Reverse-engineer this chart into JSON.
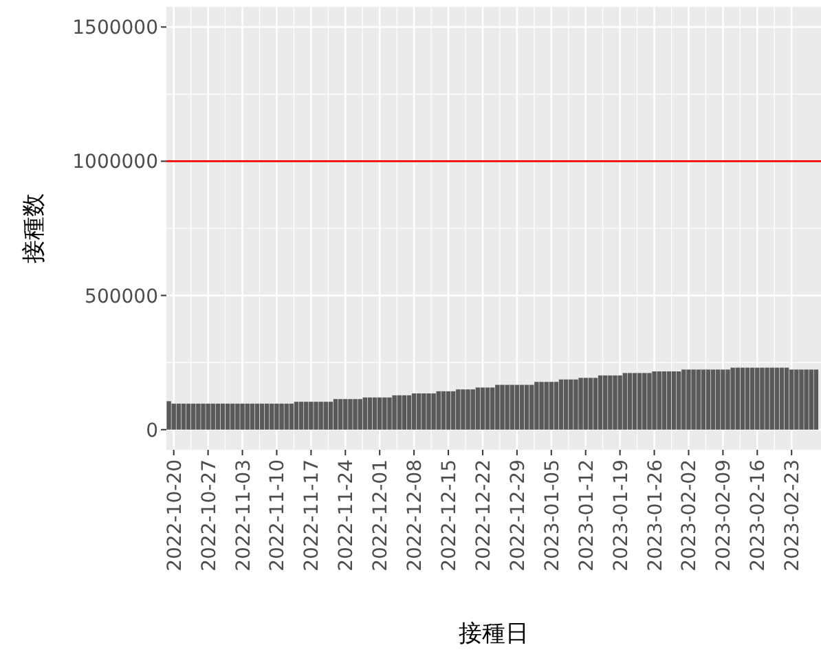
{
  "chart_data": {
    "type": "bar",
    "xlabel": "接種日",
    "ylabel": "接種数",
    "color": "#595959",
    "x": [
      "2022-10-19",
      "2022-10-20",
      "2022-10-21",
      "2022-10-22",
      "2022-10-23",
      "2022-10-24",
      "2022-10-25",
      "2022-10-26",
      "2022-10-27",
      "2022-10-28",
      "2022-10-29",
      "2022-10-30",
      "2022-10-31",
      "2022-11-01",
      "2022-11-02",
      "2022-11-03",
      "2022-11-04",
      "2022-11-05",
      "2022-11-06",
      "2022-11-07",
      "2022-11-08",
      "2022-11-09",
      "2022-11-10",
      "2022-11-11",
      "2022-11-12",
      "2022-11-13",
      "2022-11-14",
      "2022-11-15",
      "2022-11-16",
      "2022-11-17",
      "2022-11-18",
      "2022-11-19",
      "2022-11-20",
      "2022-11-21",
      "2022-11-22",
      "2022-11-23",
      "2022-11-24",
      "2022-11-25",
      "2022-11-26",
      "2022-11-27",
      "2022-11-28",
      "2022-11-29",
      "2022-11-30",
      "2022-12-01",
      "2022-12-02",
      "2022-12-03",
      "2022-12-04",
      "2022-12-05",
      "2022-12-06",
      "2022-12-07",
      "2022-12-08",
      "2022-12-09",
      "2022-12-10",
      "2022-12-11",
      "2022-12-12",
      "2022-12-13",
      "2022-12-14",
      "2022-12-15",
      "2022-12-16",
      "2022-12-17",
      "2022-12-18",
      "2022-12-19",
      "2022-12-20",
      "2022-12-21",
      "2022-12-22",
      "2022-12-23",
      "2022-12-24",
      "2022-12-25",
      "2022-12-26",
      "2022-12-27",
      "2022-12-28",
      "2022-12-29",
      "2022-12-30",
      "2022-12-31",
      "2023-01-01",
      "2023-01-02",
      "2023-01-03",
      "2023-01-04",
      "2023-01-05",
      "2023-01-06",
      "2023-01-07",
      "2023-01-08",
      "2023-01-09",
      "2023-01-10",
      "2023-01-11",
      "2023-01-12",
      "2023-01-13",
      "2023-01-14",
      "2023-01-15",
      "2023-01-16",
      "2023-01-17",
      "2023-01-18",
      "2023-01-19",
      "2023-01-20",
      "2023-01-21",
      "2023-01-22",
      "2023-01-23",
      "2023-01-24",
      "2023-01-25",
      "2023-01-26",
      "2023-01-27",
      "2023-01-28",
      "2023-01-29",
      "2023-01-30",
      "2023-01-31",
      "2023-02-01",
      "2023-02-02",
      "2023-02-03",
      "2023-02-04",
      "2023-02-05",
      "2023-02-06",
      "2023-02-07",
      "2023-02-08",
      "2023-02-09",
      "2023-02-10",
      "2023-02-11",
      "2023-02-12",
      "2023-02-13",
      "2023-02-14",
      "2023-02-15",
      "2023-02-16",
      "2023-02-17",
      "2023-02-18",
      "2023-02-19",
      "2023-02-20",
      "2023-02-21",
      "2023-02-22",
      "2023-02-23",
      "2023-02-24",
      "2023-02-25",
      "2023-02-26",
      "2023-02-27",
      "2023-02-28"
    ],
    "values": [
      106000,
      97000,
      97000,
      97000,
      97000,
      97000,
      97000,
      97000,
      97000,
      97000,
      97000,
      97000,
      97000,
      97000,
      97000,
      97000,
      97000,
      97000,
      97000,
      97000,
      97000,
      97000,
      97000,
      97000,
      97000,
      97000,
      104000,
      104000,
      104000,
      104000,
      104000,
      104000,
      104000,
      104000,
      114000,
      114000,
      114000,
      114000,
      114000,
      114000,
      120000,
      120000,
      120000,
      120000,
      120000,
      120000,
      128000,
      128000,
      128000,
      128000,
      135000,
      135000,
      135000,
      135000,
      135000,
      143000,
      143000,
      143000,
      143000,
      150000,
      150000,
      150000,
      150000,
      157000,
      157000,
      157000,
      157000,
      167000,
      167000,
      167000,
      167000,
      167000,
      167000,
      167000,
      167000,
      178000,
      178000,
      178000,
      178000,
      178000,
      187000,
      187000,
      187000,
      187000,
      193000,
      193000,
      193000,
      193000,
      202000,
      202000,
      202000,
      202000,
      202000,
      211000,
      211000,
      211000,
      211000,
      211000,
      211000,
      217000,
      217000,
      217000,
      217000,
      217000,
      217000,
      224000,
      224000,
      224000,
      224000,
      224000,
      224000,
      224000,
      224000,
      224000,
      224000,
      231000,
      231000,
      231000,
      231000,
      231000,
      231000,
      231000,
      231000,
      231000,
      231000,
      231000,
      231000,
      224000,
      224000,
      224000,
      224000,
      224000,
      224000
    ],
    "xlim": [
      "2022-10-18T12:00",
      "2023-03-01T00:00"
    ],
    "ylim": [
      -75000,
      1575000
    ],
    "xticks": [
      "2022-10-20",
      "2022-10-27",
      "2022-11-03",
      "2022-11-10",
      "2022-11-17",
      "2022-11-24",
      "2022-12-01",
      "2022-12-08",
      "2022-12-15",
      "2022-12-22",
      "2022-12-29",
      "2023-01-05",
      "2023-01-12",
      "2023-01-19",
      "2023-01-26",
      "2023-02-02",
      "2023-02-09",
      "2023-02-16",
      "2023-02-23"
    ],
    "yticks": [
      0,
      500000,
      1000000,
      1500000
    ],
    "grid": true,
    "ref_lines": [
      {
        "axis": "y",
        "value": 1000000,
        "color": "#ff0000"
      }
    ]
  }
}
